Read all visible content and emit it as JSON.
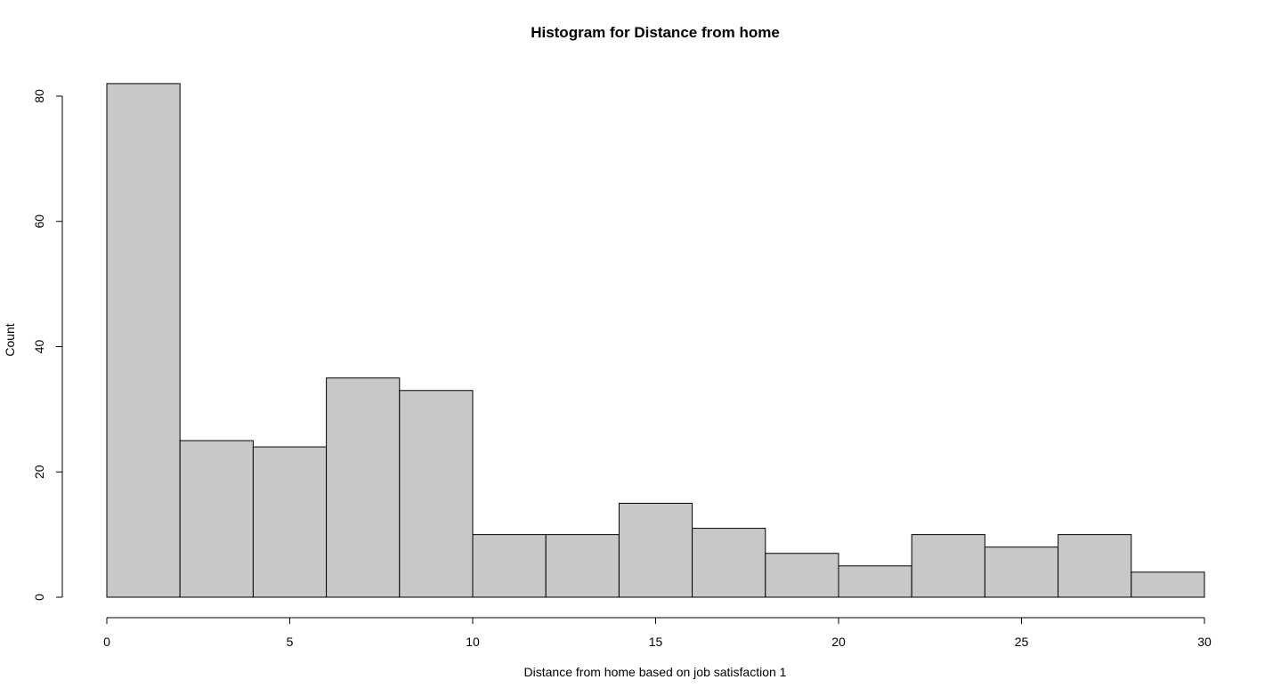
{
  "chart_data": {
    "type": "bar",
    "title": "Histogram for Distance from home",
    "xlabel": "Distance from home based on job satisfaction 1",
    "ylabel": "Count",
    "bins": [
      {
        "x0": 0,
        "x1": 2,
        "count": 82
      },
      {
        "x0": 2,
        "x1": 4,
        "count": 25
      },
      {
        "x0": 4,
        "x1": 6,
        "count": 24
      },
      {
        "x0": 6,
        "x1": 8,
        "count": 35
      },
      {
        "x0": 8,
        "x1": 10,
        "count": 33
      },
      {
        "x0": 10,
        "x1": 12,
        "count": 10
      },
      {
        "x0": 12,
        "x1": 14,
        "count": 10
      },
      {
        "x0": 14,
        "x1": 16,
        "count": 15
      },
      {
        "x0": 16,
        "x1": 18,
        "count": 11
      },
      {
        "x0": 18,
        "x1": 20,
        "count": 7
      },
      {
        "x0": 20,
        "x1": 22,
        "count": 5
      },
      {
        "x0": 22,
        "x1": 24,
        "count": 10
      },
      {
        "x0": 24,
        "x1": 26,
        "count": 8
      },
      {
        "x0": 26,
        "x1": 28,
        "count": 10
      },
      {
        "x0": 28,
        "x1": 30,
        "count": 4
      }
    ],
    "xlim": [
      0,
      30
    ],
    "ylim": [
      0,
      80
    ],
    "x_ticks": [
      0,
      5,
      10,
      15,
      20,
      25,
      30
    ],
    "y_ticks": [
      0,
      20,
      40,
      60,
      80
    ],
    "grid": false,
    "colors": {
      "bar_fill": "#c8c8c8",
      "bar_stroke": "#000000"
    }
  }
}
